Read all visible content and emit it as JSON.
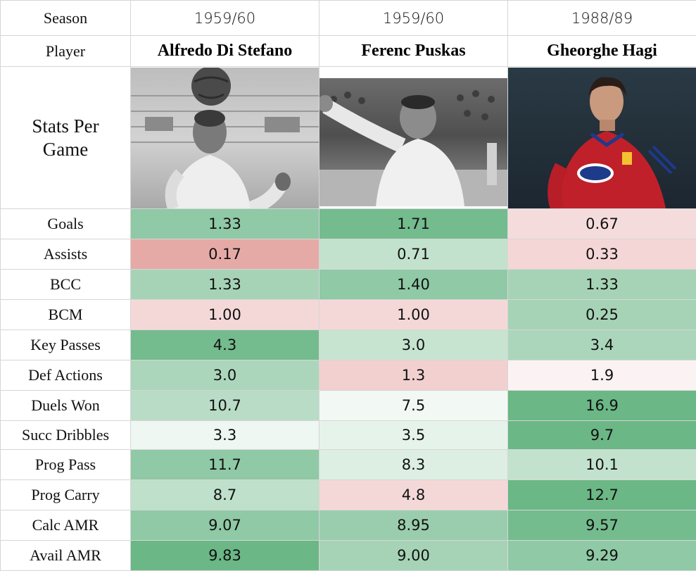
{
  "labels": {
    "season": "Season",
    "player": "Player",
    "stats_per_game_line1": "Stats Per",
    "stats_per_game_line2": "Game"
  },
  "players": [
    {
      "season": "1959/60",
      "name": "Alfredo Di Stefano",
      "photo": "player-photo-di-stefano"
    },
    {
      "season": "1959/60",
      "name": "Ferenc Puskas",
      "photo": "player-photo-puskas"
    },
    {
      "season": "1988/89",
      "name": "Gheorghe Hagi",
      "photo": "player-photo-hagi"
    }
  ],
  "rows": [
    {
      "label": "Goals",
      "values": [
        "1.33",
        "1.71",
        "0.67"
      ],
      "colors": [
        "#8fc9a5",
        "#74bb8e",
        "#f5dcdc"
      ]
    },
    {
      "label": "Assists",
      "values": [
        "0.17",
        "0.71",
        "0.33"
      ],
      "colors": [
        "#e6aaa6",
        "#c2e2cd",
        "#f5d6d6"
      ]
    },
    {
      "label": "BCC",
      "values": [
        "1.33",
        "1.40",
        "1.33"
      ],
      "colors": [
        "#a6d3b6",
        "#8fc9a5",
        "#a6d3b6"
      ]
    },
    {
      "label": "BCM",
      "values": [
        "1.00",
        "1.00",
        "0.25"
      ],
      "colors": [
        "#f4d8d8",
        "#f4d8d8",
        "#a6d3b6"
      ]
    },
    {
      "label": "Key Passes",
      "values": [
        "4.3",
        "3.0",
        "3.4"
      ],
      "colors": [
        "#74bb8e",
        "#c6e4d0",
        "#acd6bb"
      ]
    },
    {
      "label": "Def Actions",
      "values": [
        "3.0",
        "1.3",
        "1.9"
      ],
      "colors": [
        "#acd6bb",
        "#f2d0d0",
        "#fbf3f3"
      ]
    },
    {
      "label": "Duels Won",
      "values": [
        "10.7",
        "7.5",
        "16.9"
      ],
      "colors": [
        "#b8dcc5",
        "#f2f9f4",
        "#6bb786"
      ]
    },
    {
      "label": "Succ Dribbles",
      "values": [
        "3.3",
        "3.5",
        "9.7"
      ],
      "colors": [
        "#eef7f1",
        "#e6f3ea",
        "#6bb786"
      ]
    },
    {
      "label": "Prog Pass",
      "values": [
        "11.7",
        "8.3",
        "10.1"
      ],
      "colors": [
        "#8fc9a5",
        "#ddefe3",
        "#c2e2cd"
      ]
    },
    {
      "label": "Prog Carry",
      "values": [
        "8.7",
        "4.8",
        "12.7"
      ],
      "colors": [
        "#bfe0cb",
        "#f4d8d8",
        "#6bb786"
      ]
    },
    {
      "label": "Calc AMR",
      "values": [
        "9.07",
        "8.95",
        "9.57"
      ],
      "colors": [
        "#8fc9a5",
        "#9acdad",
        "#74bb8e"
      ]
    },
    {
      "label": "Avail AMR",
      "values": [
        "9.83",
        "9.00",
        "9.29"
      ],
      "colors": [
        "#6bb786",
        "#a6d3b6",
        "#8fc9a5"
      ]
    }
  ]
}
